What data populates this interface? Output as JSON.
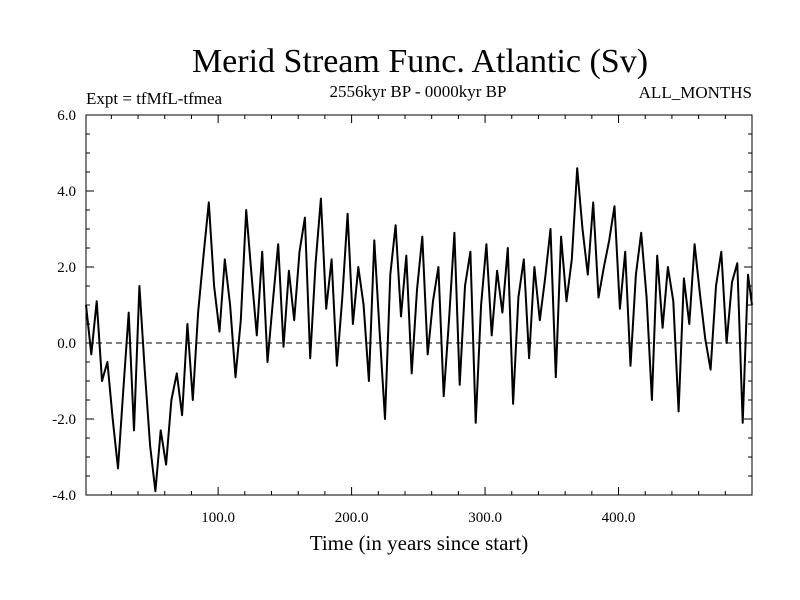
{
  "chart_data": {
    "type": "line",
    "title": "Merid Stream Func. Atlantic (Sv)",
    "subtitle": "2556kyr BP - 0000kyr BP",
    "expt_label": "Expt = tfMfL-tfmea",
    "season_label": "ALL_MONTHS",
    "xlabel": "Time (in years since start)",
    "ylabel": "",
    "xlim": [
      1,
      500
    ],
    "ylim": [
      -4.0,
      6.0
    ],
    "xticks": [
      100,
      200,
      300,
      400
    ],
    "xtick_labels": [
      "100.0",
      "200.0",
      "300.0",
      "400.0"
    ],
    "yticks": [
      -4,
      -2,
      0,
      2,
      4,
      6
    ],
    "ytick_labels": [
      "-4.0",
      "-2.0",
      "0.0",
      "2.0",
      "4.0",
      "6.0"
    ],
    "zero_line": "dashed",
    "series": [
      {
        "name": "Merid Stream Func. Atlantic",
        "x": [
          1,
          5,
          9,
          13,
          17,
          21,
          25,
          29,
          33,
          37,
          41,
          45,
          49,
          53,
          57,
          61,
          65,
          69,
          73,
          77,
          81,
          85,
          89,
          93,
          97,
          101,
          105,
          109,
          113,
          117,
          121,
          125,
          129,
          133,
          137,
          141,
          145,
          149,
          153,
          157,
          161,
          165,
          169,
          173,
          177,
          181,
          185,
          189,
          193,
          197,
          201,
          205,
          209,
          213,
          217,
          221,
          225,
          229,
          233,
          237,
          241,
          245,
          249,
          253,
          257,
          261,
          265,
          269,
          273,
          277,
          281,
          285,
          289,
          293,
          297,
          301,
          305,
          309,
          313,
          317,
          321,
          325,
          329,
          333,
          337,
          341,
          345,
          349,
          353,
          357,
          361,
          365,
          369,
          373,
          377,
          381,
          385,
          389,
          393,
          397,
          401,
          405,
          409,
          413,
          417,
          421,
          425,
          429,
          433,
          437,
          441,
          445,
          449,
          453,
          457,
          461,
          465,
          469,
          473,
          477,
          481,
          485,
          489,
          493,
          497,
          500
        ],
        "values": [
          1.0,
          -0.3,
          1.1,
          -1.0,
          -0.5,
          -2.0,
          -3.3,
          -1.2,
          0.8,
          -2.3,
          1.5,
          -0.7,
          -2.7,
          -3.9,
          -2.3,
          -3.2,
          -1.5,
          -0.8,
          -1.9,
          0.5,
          -1.5,
          0.8,
          2.3,
          3.7,
          1.5,
          0.3,
          2.2,
          1.0,
          -0.9,
          0.6,
          3.5,
          1.8,
          0.2,
          2.4,
          -0.5,
          1.1,
          2.6,
          -0.1,
          1.9,
          0.6,
          2.4,
          3.3,
          -0.4,
          2.1,
          3.8,
          0.9,
          2.2,
          -0.6,
          1.2,
          3.4,
          0.5,
          2.0,
          1.0,
          -1.0,
          2.7,
          0.3,
          -2.0,
          1.8,
          3.1,
          0.7,
          2.3,
          -0.8,
          1.4,
          2.8,
          -0.3,
          1.1,
          2.0,
          -1.4,
          0.6,
          2.9,
          -1.1,
          1.5,
          2.4,
          -2.1,
          1.0,
          2.6,
          0.2,
          1.9,
          0.8,
          2.5,
          -1.6,
          1.2,
          2.2,
          -0.4,
          2.0,
          0.6,
          1.7,
          3.0,
          -0.9,
          2.8,
          1.1,
          2.2,
          4.6,
          3.0,
          1.8,
          3.7,
          1.2,
          2.0,
          2.7,
          3.6,
          0.9,
          2.4,
          -0.6,
          1.8,
          2.9,
          1.2,
          -1.5,
          2.3,
          0.4,
          2.0,
          1.1,
          -1.8,
          1.7,
          0.5,
          2.6,
          1.3,
          0.1,
          -0.7,
          1.5,
          2.4,
          0.0,
          1.6,
          2.1,
          -2.1,
          1.8,
          1.0
        ]
      }
    ]
  }
}
